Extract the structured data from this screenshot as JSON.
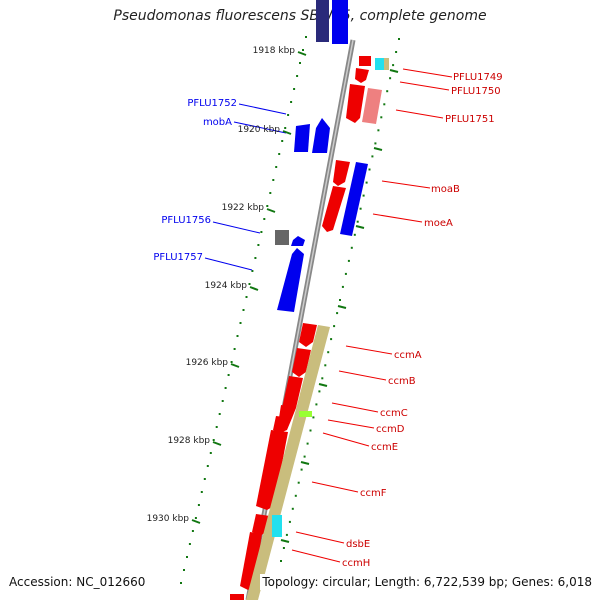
{
  "title": "Pseudomonas fluorescens SBW25, complete genome",
  "accession": "Accession: NC_012660",
  "topology": "Topology: circular; Length: 6,722,539 bp; Genes: 6,018",
  "colors": {
    "forward": "#0000ee",
    "reverse": "#ee0000",
    "backbone": "#888888",
    "tick": "#117711",
    "khaki": "#c9bd7d",
    "cyan": "#22e0ee",
    "green_mark": "#99ff33",
    "pink": "#ee8080",
    "gray_gene": "#666666",
    "dark_purple": "#2a2a7a"
  },
  "kbp_ticks": [
    "1918 kbp",
    "1920 kbp",
    "1922 kbp",
    "1924 kbp",
    "1926 kbp",
    "1928 kbp",
    "1930 kbp"
  ],
  "labels_forward": [
    "PFLU1752",
    "mobA",
    "PFLU1756",
    "PFLU1757"
  ],
  "labels_reverse": [
    "PFLU1749",
    "PFLU1750",
    "PFLU1751",
    "moaB",
    "moeA",
    "ccmA",
    "ccmB",
    "ccmC",
    "ccmD",
    "ccmE",
    "ccmF",
    "dsbE",
    "ccmH"
  ]
}
